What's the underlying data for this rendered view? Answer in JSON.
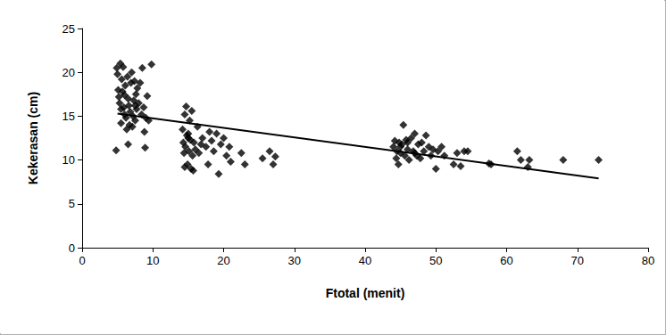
{
  "chart_data": {
    "type": "scatter",
    "xlabel": "Ftotal (menit)",
    "ylabel": "Kekerasan (cm)",
    "xlim": [
      0,
      80
    ],
    "xticks": [
      0,
      10,
      20,
      30,
      40,
      50,
      60,
      70,
      80
    ],
    "ylim": [
      0,
      25
    ],
    "yticks": [
      0,
      5,
      10,
      15,
      20,
      25
    ],
    "grid": false,
    "series": [
      {
        "type": "scatter",
        "marker": "diamond",
        "color": "#000000",
        "x": [
          4.8,
          4.9,
          5.0,
          5.1,
          5.2,
          5.3,
          5.4,
          5.5,
          5.6,
          5.7,
          5.8,
          5.9,
          6.0,
          6.1,
          6.2,
          6.3,
          6.4,
          6.5,
          6.6,
          6.7,
          6.8,
          6.9,
          7.0,
          7.1,
          7.2,
          7.3,
          7.4,
          7.5,
          7.6,
          7.7,
          7.8,
          8.0,
          8.2,
          8.4,
          8.5,
          8.7,
          8.8,
          8.9,
          9.0,
          9.2,
          9.4,
          9.8,
          6.5,
          5.5,
          7.5,
          6.0,
          14.2,
          14.3,
          14.4,
          14.5,
          14.6,
          14.7,
          14.8,
          14.9,
          15.0,
          15.1,
          15.2,
          15.3,
          15.4,
          15.5,
          15.6,
          15.7,
          15.8,
          16.0,
          16.3,
          16.5,
          17.0,
          17.5,
          17.8,
          18.0,
          18.3,
          18.6,
          19.0,
          19.3,
          19.6,
          20.0,
          20.4,
          20.8,
          21.0,
          22.5,
          23.0,
          25.5,
          26.5,
          27.0,
          27.3,
          14.5,
          15.0,
          16.8,
          44.0,
          44.2,
          44.4,
          44.5,
          44.7,
          44.8,
          45.0,
          45.2,
          45.4,
          45.6,
          45.8,
          46.0,
          46.2,
          46.5,
          46.8,
          47.0,
          47.3,
          47.5,
          47.8,
          48.0,
          48.3,
          48.6,
          49.0,
          49.3,
          49.6,
          50.0,
          50.3,
          50.8,
          51.2,
          52.5,
          53.0,
          53.5,
          54.0,
          54.5,
          57.5,
          57.8,
          61.5,
          62.0,
          63.0,
          63.2,
          68.0,
          73.0,
          45.0,
          46.0,
          47.0
        ],
        "values": [
          11.1,
          20.5,
          19.8,
          18.0,
          17.2,
          16.5,
          21.0,
          15.8,
          19.2,
          17.8,
          20.6,
          16.0,
          15.2,
          18.5,
          14.8,
          13.5,
          19.5,
          17.0,
          16.2,
          14.0,
          15.5,
          18.8,
          20.0,
          13.8,
          15.0,
          16.8,
          19.0,
          14.5,
          17.5,
          15.8,
          18.2,
          16.5,
          18.8,
          15.2,
          20.5,
          16.0,
          13.2,
          11.4,
          14.8,
          17.3,
          14.5,
          20.9,
          11.8,
          14.2,
          16.2,
          17.4,
          13.5,
          12.0,
          10.8,
          15.2,
          11.5,
          16.1,
          12.8,
          9.5,
          13.0,
          11.0,
          14.5,
          12.3,
          9.0,
          15.6,
          10.5,
          8.8,
          12.0,
          11.2,
          13.8,
          10.8,
          12.5,
          11.5,
          9.5,
          13.2,
          12.2,
          11.0,
          13.0,
          8.4,
          11.8,
          12.5,
          10.5,
          11.5,
          9.8,
          10.8,
          9.5,
          10.2,
          11.0,
          9.5,
          10.4,
          9.2,
          12.5,
          11.8,
          11.5,
          12.2,
          10.2,
          11.0,
          9.5,
          12.0,
          10.8,
          11.8,
          14.0,
          10.5,
          12.3,
          11.2,
          10.0,
          12.5,
          11.0,
          13.0,
          10.5,
          11.8,
          10.2,
          12.0,
          11.0,
          12.8,
          11.5,
          10.5,
          11.2,
          9.0,
          11.0,
          11.5,
          10.5,
          9.5,
          10.8,
          9.3,
          11.0,
          11.0,
          9.6,
          9.5,
          11.0,
          10.0,
          9.2,
          10.0,
          10.0,
          10.0,
          11.5,
          12.0,
          10.8
        ]
      },
      {
        "type": "line",
        "line_style": "solid",
        "color": "#000000",
        "x": [
          5,
          73
        ],
        "values": [
          15.3,
          7.9
        ]
      }
    ]
  }
}
